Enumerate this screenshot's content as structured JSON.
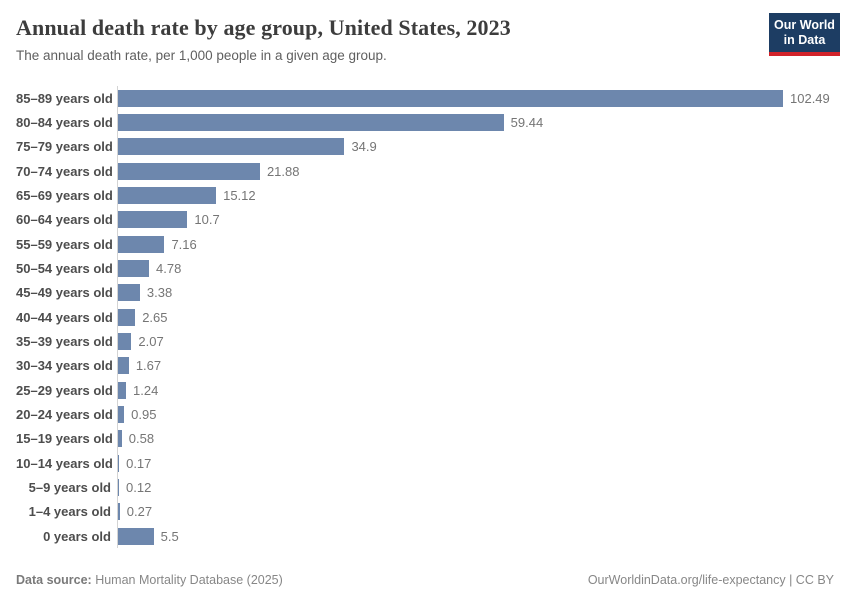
{
  "header": {
    "title": "Annual death rate by age group, United States, 2023",
    "subtitle": "The annual death rate, per 1,000 people in a given age group.",
    "logo": {
      "line1": "Our World",
      "line2": "in Data"
    }
  },
  "chart_data": {
    "type": "bar",
    "orientation": "horizontal",
    "title": "Annual death rate by age group, United States, 2023",
    "subtitle": "The annual death rate, per 1,000 people in a given age group.",
    "categories": [
      "85–89 years old",
      "80–84 years old",
      "75–79 years old",
      "70–74 years old",
      "65–69 years old",
      "60–64 years old",
      "55–59 years old",
      "50–54 years old",
      "45–49 years old",
      "40–44 years old",
      "35–39 years old",
      "30–34 years old",
      "25–29 years old",
      "20–24 years old",
      "15–19 years old",
      "10–14 years old",
      "5–9 years old",
      "1–4 years old",
      "0 years old"
    ],
    "values": [
      102.49,
      59.44,
      34.9,
      21.88,
      15.12,
      10.7,
      7.16,
      4.78,
      3.38,
      2.65,
      2.07,
      1.67,
      1.24,
      0.95,
      0.58,
      0.17,
      0.12,
      0.27,
      5.5
    ],
    "value_labels": [
      "102.49",
      "59.44",
      "34.9",
      "21.88",
      "15.12",
      "10.7",
      "7.16",
      "4.78",
      "3.38",
      "2.65",
      "2.07",
      "1.67",
      "1.24",
      "0.95",
      "0.58",
      "0.17",
      "0.12",
      "0.27",
      "5.5"
    ],
    "xlabel": "",
    "ylabel": "",
    "xlim": [
      0,
      110
    ],
    "grid": false,
    "legend": "none",
    "unit": "deaths per 1,000 people"
  },
  "footer": {
    "source_label": "Data source:",
    "source_text": " Human Mortality Database (2025)",
    "right_text": "OurWorldinData.org/life-expectancy | CC BY"
  },
  "colors": {
    "bar": "#6d87ad",
    "title": "#3d3d3d",
    "subtitle": "#5f5f5f",
    "category_label": "#4d4d4d",
    "value_label": "#757575",
    "axis_line": "#d4d4d4",
    "footer_text": "#878787",
    "logo_background": "#1d3d63",
    "logo_accent": "#d2232a"
  }
}
